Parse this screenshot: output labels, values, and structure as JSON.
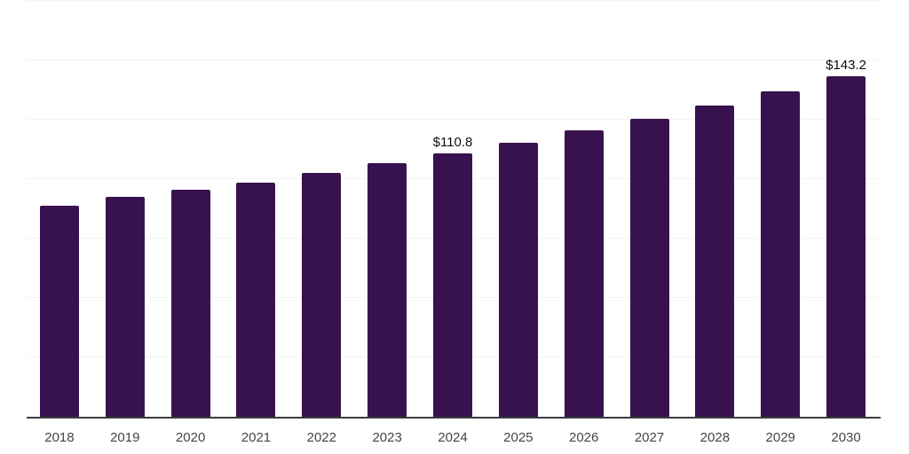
{
  "chart_data": {
    "type": "bar",
    "title": "",
    "xlabel": "",
    "ylabel": "",
    "categories": [
      "2018",
      "2019",
      "2020",
      "2021",
      "2022",
      "2023",
      "2024",
      "2025",
      "2026",
      "2027",
      "2028",
      "2029",
      "2030"
    ],
    "values": [
      88.8,
      92.4,
      95.4,
      98.6,
      102.5,
      106.8,
      110.8,
      115.2,
      120.4,
      125.3,
      130.9,
      137.1,
      143.2
    ],
    "value_labels": {
      "2024": "$110.8",
      "2030": "$143.2"
    },
    "unit_prefix": "$",
    "ylim": [
      0,
      175
    ],
    "grid_step": 25,
    "grid": true,
    "legend": false,
    "colors": {
      "bar": "#38124e",
      "grid_line": "#f3f3f3",
      "axis_line": "#3c3c3c",
      "tick_label": "#454545",
      "value_label": "#0d0d0d",
      "background": "#ffffff"
    }
  }
}
